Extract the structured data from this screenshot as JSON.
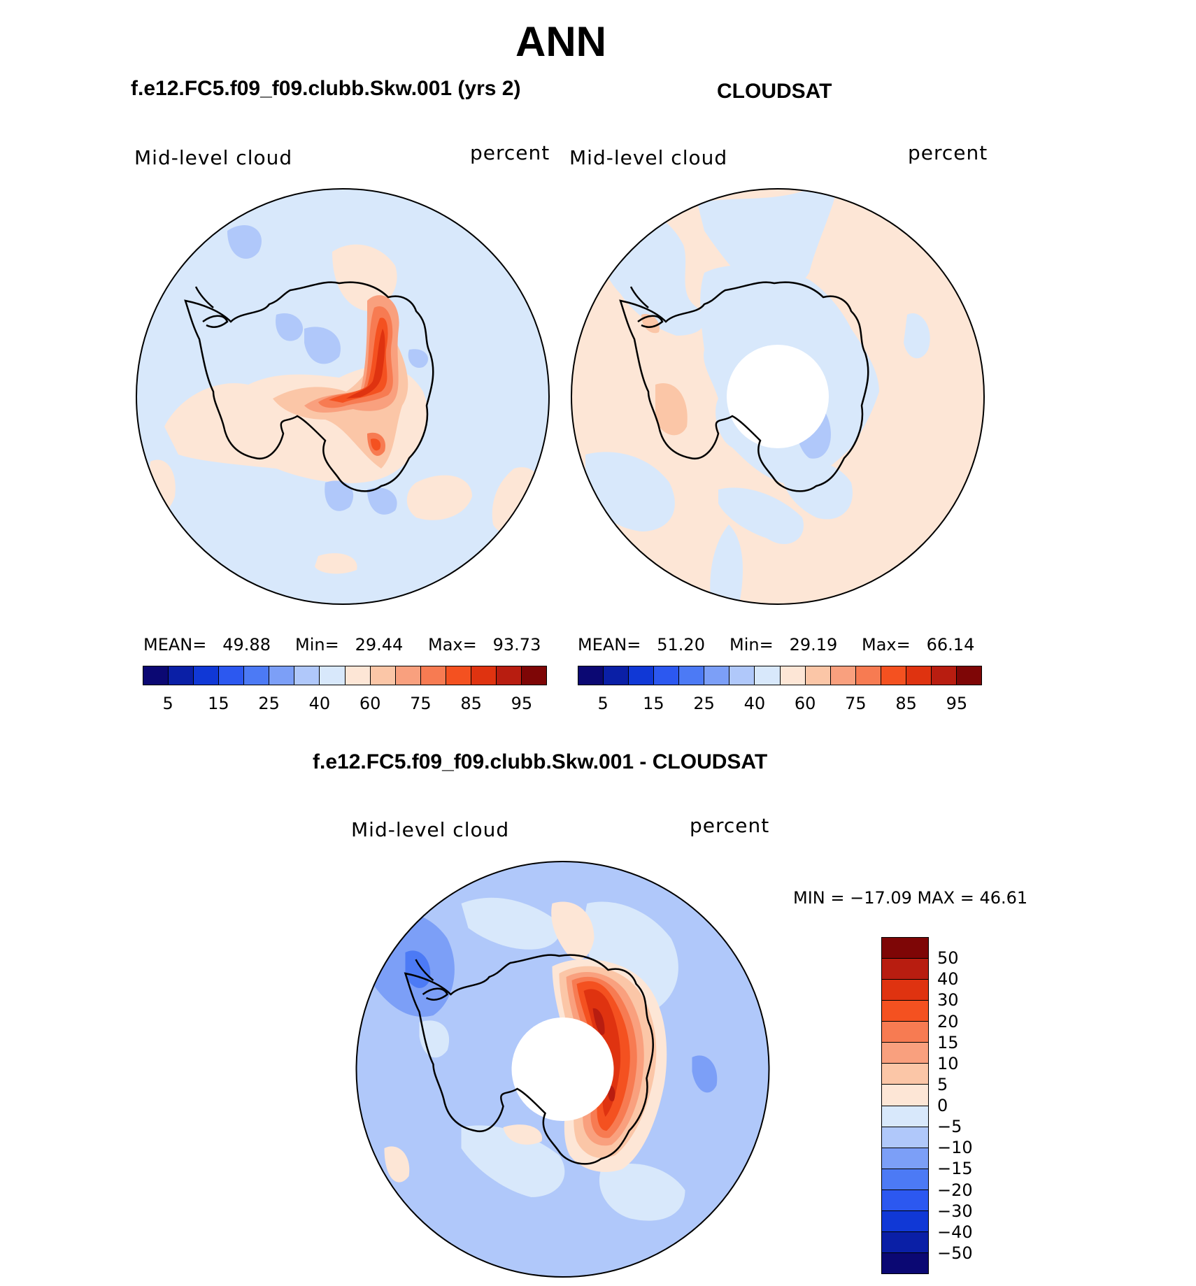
{
  "figure_title": "ANN",
  "panels": [
    {
      "title": "f.e12.FC5.f09_f09.clubb.Skw.001 (yrs 2)",
      "variable": "Mid-level cloud",
      "units": "percent",
      "stats": {
        "mean_label": "MEAN=",
        "mean": "49.88",
        "min_label": "Min=",
        "min": "29.44",
        "max_label": "Max=",
        "max": "93.73"
      }
    },
    {
      "title": "CLOUDSAT",
      "variable": "Mid-level cloud",
      "units": "percent",
      "stats": {
        "mean_label": "MEAN=",
        "mean": "51.20",
        "min_label": "Min=",
        "min": "29.19",
        "max_label": "Max=",
        "max": "66.14"
      }
    },
    {
      "title": "f.e12.FC5.f09_f09.clubb.Skw.001 - CLOUDSAT",
      "variable": "Mid-level cloud",
      "units": "percent",
      "stats_text": "MIN = −17.09 MAX =   46.61"
    }
  ],
  "colorbar_abs": {
    "colors": [
      "#0b0873",
      "#0a1fa6",
      "#1038d6",
      "#2c58f0",
      "#4c7af5",
      "#7c9ff7",
      "#b0c8fa",
      "#d8e8fb",
      "#fde6d6",
      "#fbc6a7",
      "#f9a07e",
      "#f77b52",
      "#f45120",
      "#df3310",
      "#b81d10",
      "#7e0606"
    ],
    "tick_labels": [
      "5",
      "15",
      "25",
      "40",
      "60",
      "75",
      "85",
      "95"
    ]
  },
  "colorbar_diff": {
    "colors": [
      "#7e0606",
      "#b81d10",
      "#df3310",
      "#f45120",
      "#f77b52",
      "#f9a07e",
      "#fbc6a7",
      "#fde6d6",
      "#d8e8fb",
      "#b0c8fa",
      "#7c9ff7",
      "#4c7af5",
      "#2c58f0",
      "#1038d6",
      "#0a1fa6",
      "#0b0873"
    ],
    "tick_labels": [
      "50",
      "40",
      "30",
      "20",
      "15",
      "10",
      "5",
      "0",
      "−5",
      "−10",
      "−15",
      "−20",
      "−30",
      "−40",
      "−50"
    ]
  },
  "map_colors": {
    "light_blue": "#d8e8fb",
    "pale_blue": "#b0c8fa",
    "mid_blue": "#7c9ff7",
    "blue": "#4c7af5",
    "pale_orange": "#fde6d6",
    "light_orange": "#fbc6a7",
    "orange": "#f9a07e",
    "deep_orange": "#f77b52",
    "red_orange": "#f45120",
    "red": "#df3310",
    "dark_red": "#b81d10"
  }
}
